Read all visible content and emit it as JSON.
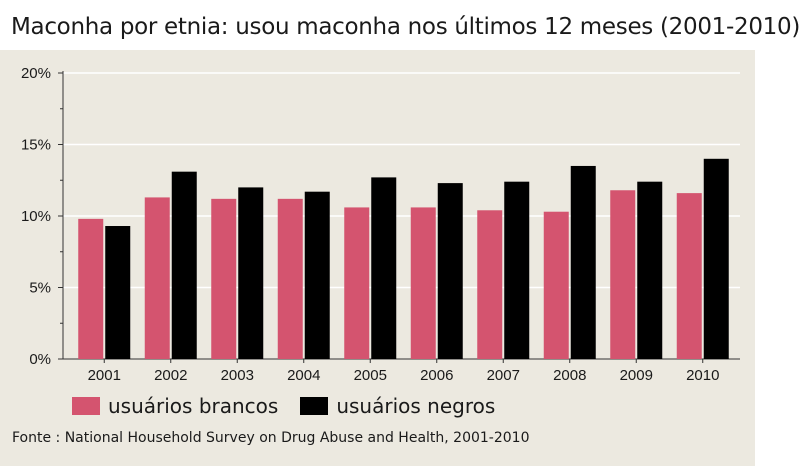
{
  "title": "Maconha por etnia: usou maconha nos últimos 12 meses (2001-2010)",
  "source": "Fonte : National Household Survey on Drug Abuse and Health, 2001-2010",
  "colors": {
    "brancos": "#d4546f",
    "negros": "#000000",
    "background": "#ece9e0"
  },
  "chart_data": {
    "type": "bar",
    "title": "Maconha por etnia: usou maconha nos últimos 12 meses (2001-2010)",
    "categories": [
      "2001",
      "2002",
      "2003",
      "2004",
      "2005",
      "2006",
      "2007",
      "2008",
      "2009",
      "2010"
    ],
    "series": [
      {
        "name": "usuários brancos",
        "color": "#d4546f",
        "values": [
          9.8,
          11.3,
          11.2,
          11.2,
          10.6,
          10.6,
          10.4,
          10.3,
          11.8,
          11.6
        ]
      },
      {
        "name": "usuários negros",
        "color": "#000000",
        "values": [
          9.3,
          13.1,
          12.0,
          11.7,
          12.7,
          12.3,
          12.4,
          13.5,
          12.4,
          14.0
        ]
      }
    ],
    "yticks": [
      "0%",
      "5%",
      "10%",
      "15%",
      "20%"
    ],
    "ylim": [
      0,
      20
    ],
    "grid": true,
    "legend": "bottom-left"
  }
}
